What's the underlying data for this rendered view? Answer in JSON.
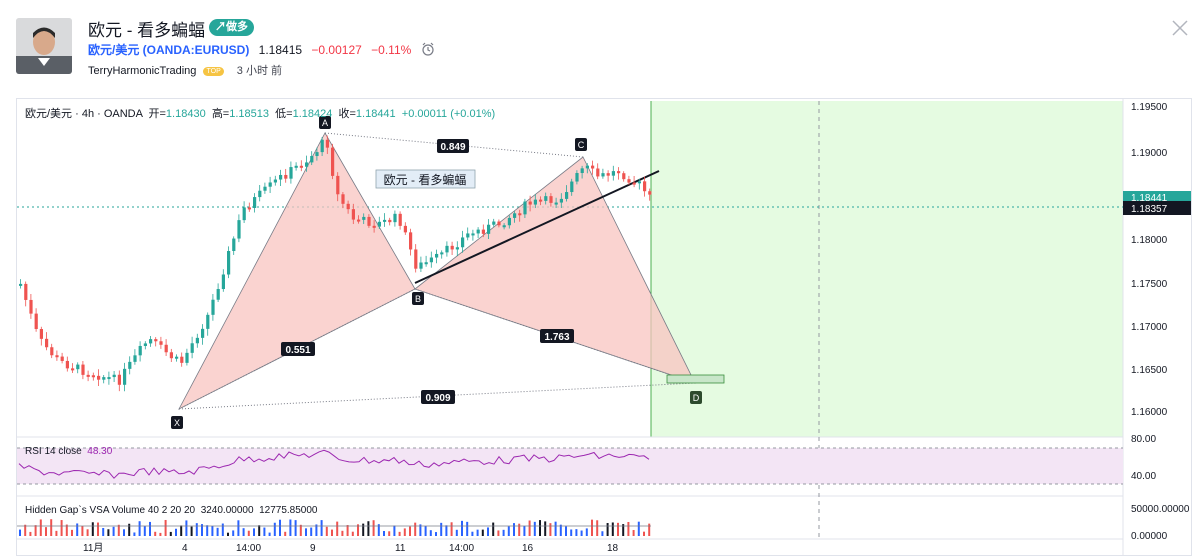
{
  "header": {
    "title": "欧元 - 看多蝙蝠",
    "badge": "↗做多",
    "symbol": "欧元/美元 (OANDA:EURUSD)",
    "price": "1.18415",
    "change": "−0.00127",
    "change_pct": "−0.11%",
    "author": "TerryHarmonicTrading",
    "author_badge": "TOP",
    "time_ago": "3 小时 前"
  },
  "legend": {
    "symbol": "欧元/美元 · 4h · OANDA",
    "open_label": "开=",
    "open": "1.18430",
    "high_label": "高=",
    "high": "1.18513",
    "low_label": "低=",
    "low": "1.18424",
    "close_label": "收=",
    "close": "1.18441",
    "change": "+0.00011 (+0.01%)"
  },
  "rsi": {
    "label": "RSI 14 close",
    "value": "48.30",
    "axis_top": "80.00",
    "axis_mid": "40.00"
  },
  "volume": {
    "label": "Hidden Gap`s VSA Volume 40 2 20 20",
    "v1": "3240.00000",
    "v2": "12775.85000",
    "axis_top": "50000.00000",
    "axis_bottom": "0.00000"
  },
  "price_axis": {
    "ticks": [
      "1.19500",
      "1.19000",
      "1.18500",
      "1.18000",
      "1.17500",
      "1.17000",
      "1.16500",
      "1.16000"
    ],
    "current": "1.18357",
    "current_hidden": "1.18441"
  },
  "time_axis": [
    "11月",
    "4",
    "14:00",
    "9",
    "11",
    "14:00",
    "16",
    "18"
  ],
  "pattern": {
    "points": {
      "x": "X",
      "a": "A",
      "b": "B",
      "c": "C",
      "d": "D"
    },
    "ratios": {
      "xb": "0.551",
      "ac": "0.849",
      "bd": "1.763",
      "xd": "0.909"
    },
    "label": "欧元 - 看多蝙蝠"
  },
  "colors": {
    "up": "#26a69a",
    "down": "#ef5350",
    "accent": "#2962ff",
    "pattern_fill": "#f8c4c0",
    "zone": "#e5fbe1",
    "rsi": "#9c27b0"
  }
}
